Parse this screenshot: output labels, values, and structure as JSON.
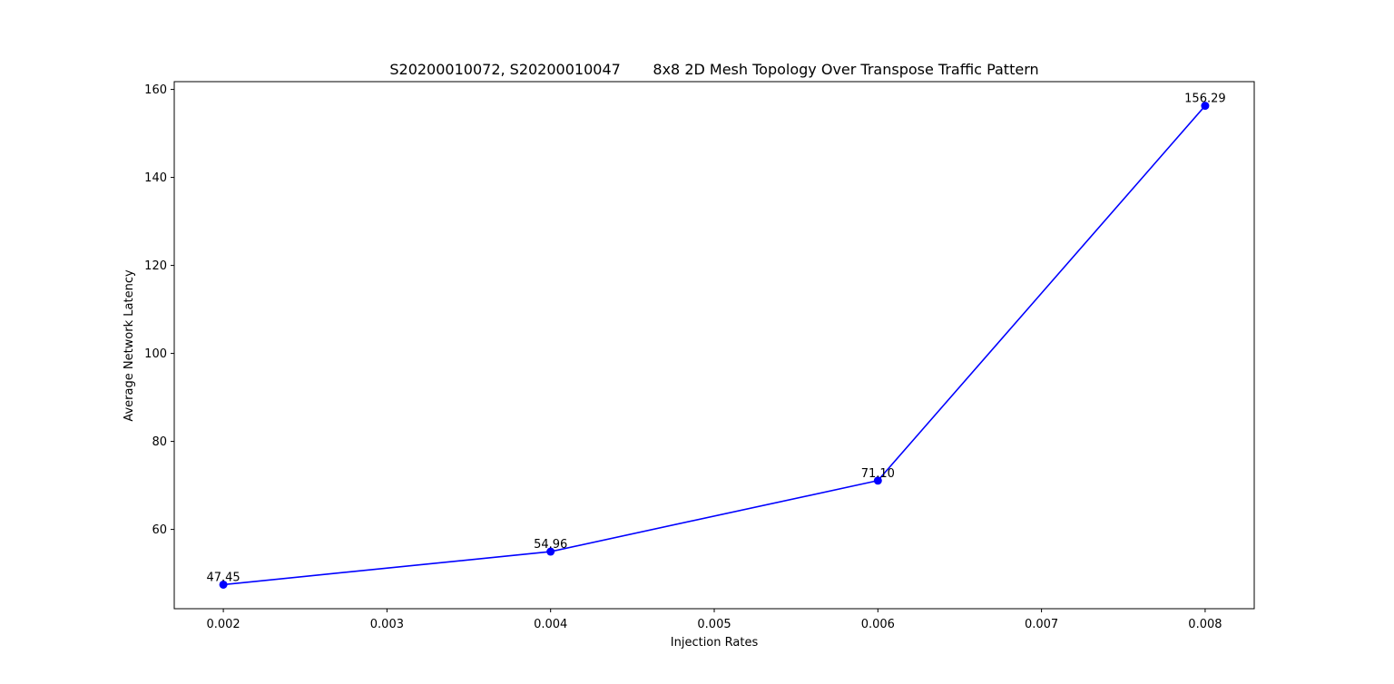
{
  "chart_data": {
    "type": "line",
    "title": "S20200010072, S20200010047       8x8 2D Mesh Topology Over Transpose Traffic Pattern",
    "xlabel": "Injection Rates",
    "ylabel": "Average Network Latency",
    "x": [
      0.002,
      0.004,
      0.006,
      0.008
    ],
    "series": [
      {
        "values": [
          47.45,
          54.96,
          71.1,
          156.29
        ],
        "labels": [
          "47.45",
          "54.96",
          "71.10",
          "156.29"
        ],
        "color": "#0000ff",
        "marker": "circle"
      }
    ],
    "xlim": [
      0.0017,
      0.0083
    ],
    "ylim": [
      41.98,
      161.77
    ],
    "xticks": [
      0.002,
      0.003,
      0.004,
      0.005,
      0.006,
      0.007,
      0.008
    ],
    "xtick_labels": [
      "0.002",
      "0.003",
      "0.004",
      "0.005",
      "0.006",
      "0.007",
      "0.008"
    ],
    "yticks": [
      60,
      80,
      100,
      120,
      140,
      160
    ],
    "ytick_labels": [
      "60",
      "80",
      "100",
      "120",
      "140",
      "160"
    ],
    "grid": false,
    "legend": "none"
  }
}
